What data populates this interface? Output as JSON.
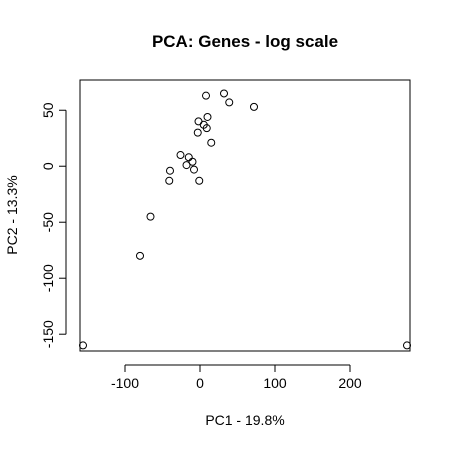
{
  "chart_data": {
    "type": "scatter",
    "title": "PCA: Genes - log scale",
    "xlabel": "PC1 - 19.8%",
    "ylabel": "PC2 - 13.3%",
    "xlim": [
      -160,
      280
    ],
    "ylim": [
      -165,
      77
    ],
    "xticks": [
      -100,
      0,
      100,
      200
    ],
    "yticks": [
      -150,
      -100,
      -50,
      0,
      50
    ],
    "grid": false,
    "legend": "none",
    "points": [
      {
        "x": -156,
        "y": -160
      },
      {
        "x": 276,
        "y": -160
      },
      {
        "x": -80,
        "y": -80
      },
      {
        "x": -66,
        "y": -45
      },
      {
        "x": -41,
        "y": -13
      },
      {
        "x": -40,
        "y": -4
      },
      {
        "x": -26,
        "y": 10
      },
      {
        "x": -18,
        "y": 1
      },
      {
        "x": -15,
        "y": 8
      },
      {
        "x": -10,
        "y": 4
      },
      {
        "x": -8,
        "y": -3
      },
      {
        "x": -1,
        "y": -13
      },
      {
        "x": -3,
        "y": 30
      },
      {
        "x": -2,
        "y": 40
      },
      {
        "x": 5,
        "y": 37
      },
      {
        "x": 9,
        "y": 34
      },
      {
        "x": 10,
        "y": 44
      },
      {
        "x": 15,
        "y": 21
      },
      {
        "x": 8,
        "y": 63
      },
      {
        "x": 32,
        "y": 65
      },
      {
        "x": 39,
        "y": 57
      },
      {
        "x": 72,
        "y": 53
      }
    ]
  }
}
